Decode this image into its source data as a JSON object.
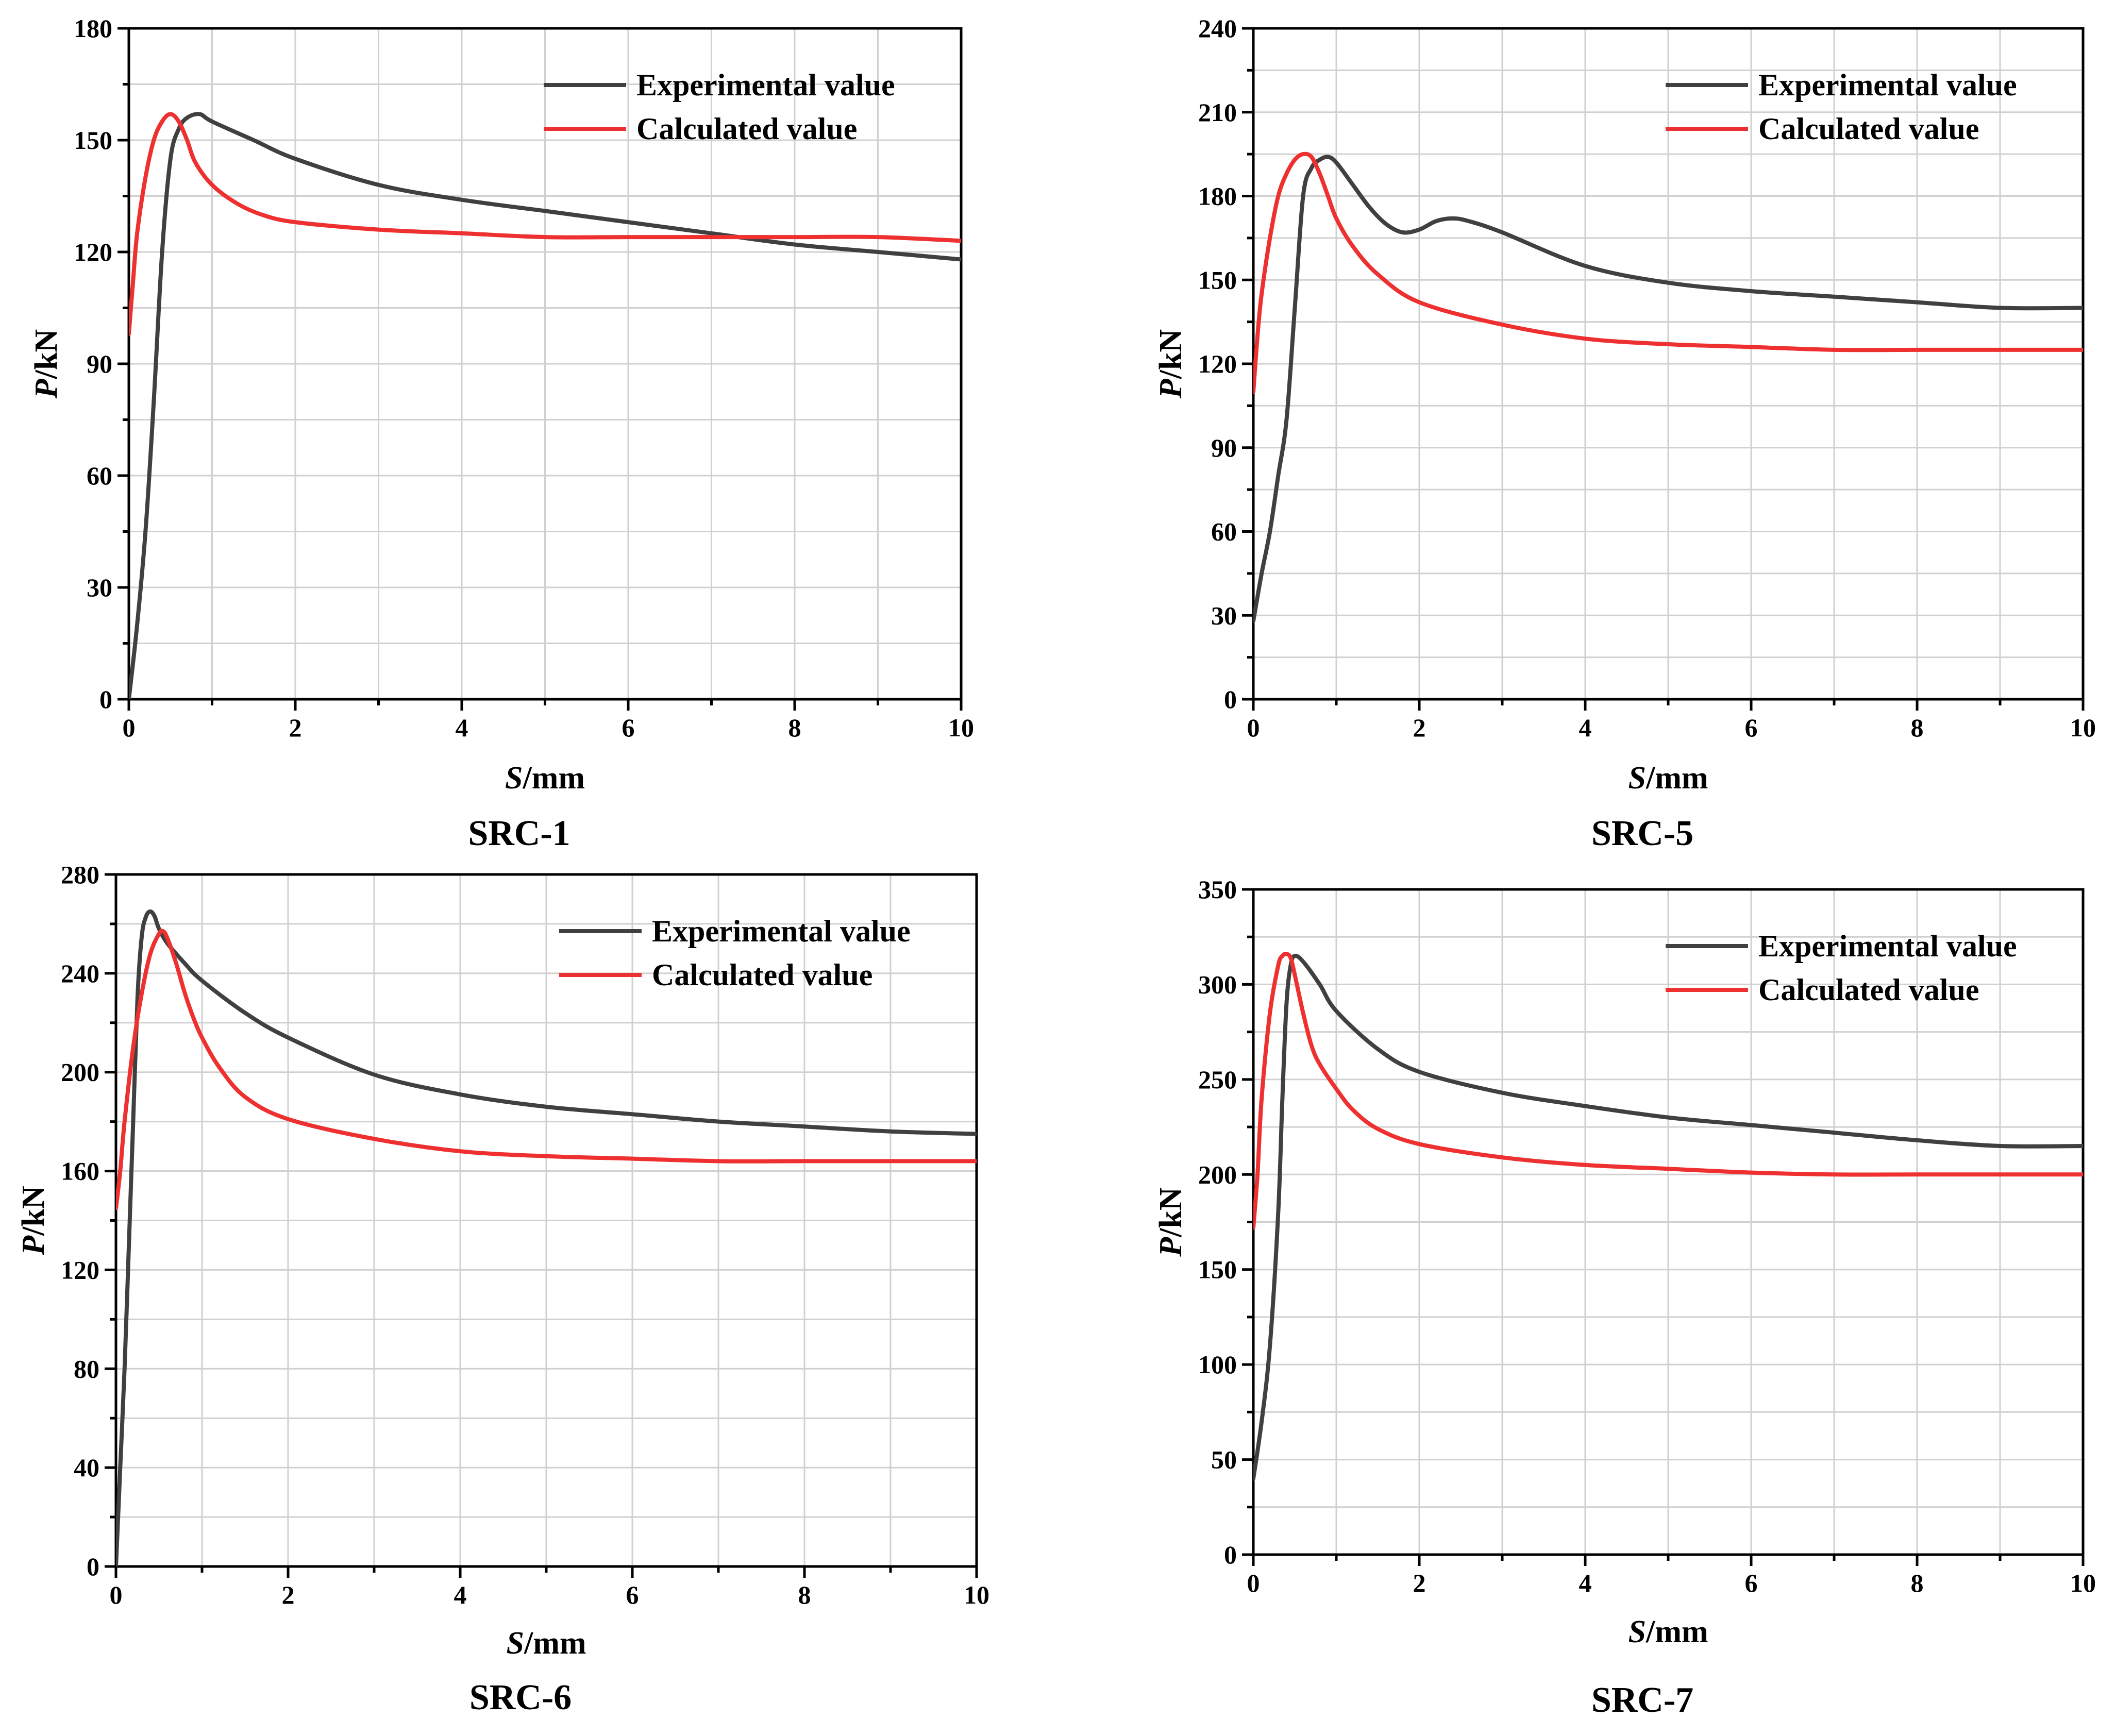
{
  "chart_data": [
    {
      "type": "line",
      "title": "SRC-1",
      "xlabel": {
        "var": "S",
        "unit": "/mm"
      },
      "ylabel": {
        "var": "P",
        "unit": "/kN"
      },
      "xlim": [
        0,
        10
      ],
      "ylim": [
        0,
        180
      ],
      "xticks": [
        0,
        2,
        4,
        6,
        8,
        10
      ],
      "yticks": [
        0,
        30,
        60,
        90,
        120,
        150,
        180
      ],
      "grid": true,
      "legend": "top-right",
      "series": [
        {
          "name": "Experimental value",
          "color": "#404040",
          "x": [
            0,
            0.1,
            0.2,
            0.3,
            0.4,
            0.5,
            0.6,
            0.7,
            0.85,
            1.0,
            1.5,
            2,
            3,
            4,
            5,
            6,
            7,
            8,
            9,
            10
          ],
          "y": [
            0,
            20,
            45,
            80,
            120,
            145,
            153,
            156,
            157,
            155,
            150,
            145,
            138,
            134,
            131,
            128,
            125,
            122,
            120,
            118
          ]
        },
        {
          "name": "Calculated value",
          "color": "#ee3030",
          "x": [
            0,
            0.05,
            0.1,
            0.2,
            0.3,
            0.4,
            0.5,
            0.6,
            0.7,
            0.8,
            1.0,
            1.3,
            1.6,
            2,
            3,
            4,
            5,
            6,
            7,
            8,
            9,
            10
          ],
          "y": [
            98,
            112,
            125,
            140,
            150,
            155,
            157,
            155,
            150,
            144,
            138,
            133,
            130,
            128,
            126,
            125,
            124,
            124,
            124,
            124,
            124,
            123
          ]
        }
      ]
    },
    {
      "type": "line",
      "title": "SRC-5",
      "xlabel": {
        "var": "S",
        "unit": "/mm"
      },
      "ylabel": {
        "var": "P",
        "unit": "/kN"
      },
      "xlim": [
        0,
        10
      ],
      "ylim": [
        0,
        240
      ],
      "xticks": [
        0,
        2,
        4,
        6,
        8,
        10
      ],
      "yticks": [
        0,
        30,
        60,
        90,
        120,
        150,
        180,
        210,
        240
      ],
      "grid": true,
      "legend": "top-right",
      "series": [
        {
          "name": "Experimental value",
          "color": "#404040",
          "x": [
            0,
            0.1,
            0.2,
            0.3,
            0.4,
            0.5,
            0.6,
            0.7,
            0.8,
            0.9,
            1.0,
            1.2,
            1.4,
            1.6,
            1.8,
            2.0,
            2.2,
            2.4,
            2.6,
            3,
            4,
            5,
            6,
            7,
            8,
            9,
            10
          ],
          "y": [
            28,
            45,
            60,
            80,
            100,
            140,
            180,
            190,
            193,
            194,
            192,
            184,
            176,
            170,
            167,
            168,
            171,
            172,
            171,
            167,
            155,
            149,
            146,
            144,
            142,
            140,
            140
          ]
        },
        {
          "name": "Calculated value",
          "color": "#ee3030",
          "x": [
            0,
            0.05,
            0.1,
            0.2,
            0.3,
            0.4,
            0.5,
            0.6,
            0.7,
            0.8,
            0.9,
            1.0,
            1.2,
            1.5,
            2,
            3,
            4,
            5,
            6,
            7,
            8,
            9,
            10
          ],
          "y": [
            110,
            130,
            145,
            165,
            180,
            188,
            193,
            195,
            194,
            188,
            180,
            172,
            162,
            152,
            142,
            134,
            129,
            127,
            126,
            125,
            125,
            125,
            125
          ]
        }
      ]
    },
    {
      "type": "line",
      "title": "SRC-6",
      "xlabel": {
        "var": "S",
        "unit": "/mm"
      },
      "ylabel": {
        "var": "P",
        "unit": "/kN"
      },
      "xlim": [
        0,
        10
      ],
      "ylim": [
        0,
        280
      ],
      "xticks": [
        0,
        2,
        4,
        6,
        8,
        10
      ],
      "yticks": [
        0,
        40,
        80,
        120,
        160,
        200,
        240,
        280
      ],
      "grid": true,
      "legend": "top-right",
      "series": [
        {
          "name": "Experimental value",
          "color": "#404040",
          "x": [
            0,
            0.05,
            0.1,
            0.15,
            0.2,
            0.25,
            0.3,
            0.35,
            0.4,
            0.45,
            0.5,
            0.6,
            0.8,
            1.0,
            1.5,
            2,
            3,
            4,
            5,
            6,
            7,
            8,
            9,
            10
          ],
          "y": [
            0,
            40,
            80,
            130,
            180,
            230,
            255,
            263,
            265,
            263,
            258,
            252,
            244,
            237,
            224,
            214,
            199,
            191,
            186,
            183,
            180,
            178,
            176,
            175
          ]
        },
        {
          "name": "Calculated value",
          "color": "#ee3030",
          "x": [
            0,
            0.05,
            0.1,
            0.2,
            0.3,
            0.4,
            0.5,
            0.55,
            0.6,
            0.7,
            0.8,
            0.9,
            1.0,
            1.2,
            1.5,
            2,
            3,
            4,
            5,
            6,
            7,
            8,
            9,
            10
          ],
          "y": [
            145,
            160,
            180,
            210,
            232,
            248,
            256,
            257,
            254,
            244,
            232,
            222,
            214,
            202,
            190,
            181,
            173,
            168,
            166,
            165,
            164,
            164,
            164,
            164
          ]
        }
      ]
    },
    {
      "type": "line",
      "title": "SRC-7",
      "xlabel": {
        "var": "S",
        "unit": "/mm"
      },
      "ylabel": {
        "var": "P",
        "unit": "/kN"
      },
      "xlim": [
        0,
        10
      ],
      "ylim": [
        0,
        350
      ],
      "xticks": [
        0,
        2,
        4,
        6,
        8,
        10
      ],
      "yticks": [
        0,
        50,
        100,
        150,
        200,
        250,
        300,
        350
      ],
      "grid": true,
      "legend": "top-right",
      "series": [
        {
          "name": "Experimental value",
          "color": "#404040",
          "x": [
            0,
            0.1,
            0.2,
            0.3,
            0.35,
            0.4,
            0.45,
            0.5,
            0.6,
            0.8,
            1.0,
            1.5,
            2,
            3,
            4,
            5,
            6,
            7,
            8,
            9,
            10
          ],
          "y": [
            40,
            70,
            110,
            180,
            240,
            290,
            310,
            315,
            312,
            300,
            286,
            266,
            254,
            243,
            236,
            230,
            226,
            222,
            218,
            215,
            215
          ]
        },
        {
          "name": "Calculated value",
          "color": "#ee3030",
          "x": [
            0,
            0.05,
            0.1,
            0.2,
            0.3,
            0.35,
            0.4,
            0.45,
            0.5,
            0.6,
            0.7,
            0.8,
            1.0,
            1.2,
            1.5,
            2,
            3,
            4,
            5,
            6,
            7,
            8,
            9,
            10
          ],
          "y": [
            172,
            200,
            240,
            285,
            310,
            315,
            316,
            314,
            305,
            285,
            268,
            258,
            245,
            234,
            224,
            216,
            209,
            205,
            203,
            201,
            200,
            200,
            200,
            200
          ]
        }
      ]
    }
  ]
}
